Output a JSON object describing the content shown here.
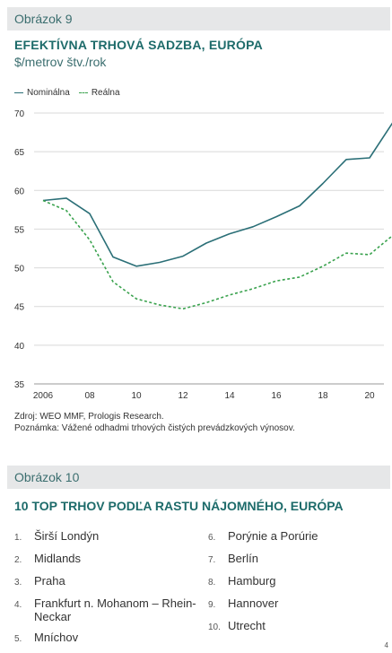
{
  "figure1": {
    "header": "Obrázok 9",
    "source": "Zdroj: WEO MMF, Prologis Research.",
    "note": "Poznámka: Vážené odhadmi trhových čistých prevádzkových výnosov."
  },
  "chart_data": {
    "type": "line",
    "title": "EFEKTÍVNA TRHOVÁ SADZBA, EURÓPA",
    "subtitle": "$/metrov štv./rok",
    "xlabel": "",
    "ylabel": "",
    "ylim": [
      35,
      70
    ],
    "yticks": [
      35,
      40,
      45,
      50,
      55,
      60,
      65,
      70
    ],
    "xlim": [
      2006,
      2021
    ],
    "xticks": [
      2006,
      2008,
      2010,
      2012,
      2014,
      2016,
      2018,
      2020
    ],
    "xtick_labels": [
      "2006",
      "08",
      "10",
      "12",
      "14",
      "16",
      "18",
      "20"
    ],
    "grid": true,
    "legend": "top-left",
    "series": [
      {
        "name": "Nominálna",
        "style": "solid",
        "color": "#2b6f77",
        "x": [
          2006,
          2007,
          2008,
          2009,
          2010,
          2011,
          2012,
          2013,
          2014,
          2015,
          2016,
          2017,
          2018,
          2019,
          2020,
          2021
        ],
        "y": [
          58.7,
          59.0,
          57.0,
          51.4,
          50.2,
          50.7,
          51.5,
          53.2,
          54.4,
          55.3,
          56.6,
          58.0,
          60.9,
          64.0,
          64.2,
          68.8
        ]
      },
      {
        "name": "Reálna",
        "style": "dashed",
        "color": "#3aa24e",
        "x": [
          2006,
          2007,
          2008,
          2009,
          2010,
          2011,
          2012,
          2013,
          2014,
          2015,
          2016,
          2017,
          2018,
          2019,
          2020,
          2021
        ],
        "y": [
          58.7,
          57.4,
          53.6,
          48.2,
          46.0,
          45.2,
          44.7,
          45.5,
          46.5,
          47.3,
          48.3,
          48.8,
          50.2,
          51.9,
          51.7,
          54.2
        ]
      }
    ]
  },
  "figure2": {
    "header": "Obrázok 10",
    "title": "10 TOP TRHOV PODĽA RASTU NÁJOMNÉHO, EURÓPA",
    "left": [
      {
        "num": "1.",
        "name": "Širší Londýn"
      },
      {
        "num": "2.",
        "name": "Midlands"
      },
      {
        "num": "3.",
        "name": "Praha"
      },
      {
        "num": "4.",
        "name": "Frankfurt n. Mohanom – Rhein-Neckar"
      },
      {
        "num": "5.",
        "name": "Mníchov"
      }
    ],
    "right": [
      {
        "num": "6.",
        "name": "Porýnie a Porúrie"
      },
      {
        "num": "7.",
        "name": "Berlín"
      },
      {
        "num": "8.",
        "name": "Hamburg"
      },
      {
        "num": "9.",
        "name": "Hannover"
      },
      {
        "num": "10.",
        "name": "Utrecht"
      }
    ]
  },
  "page_number": "4"
}
